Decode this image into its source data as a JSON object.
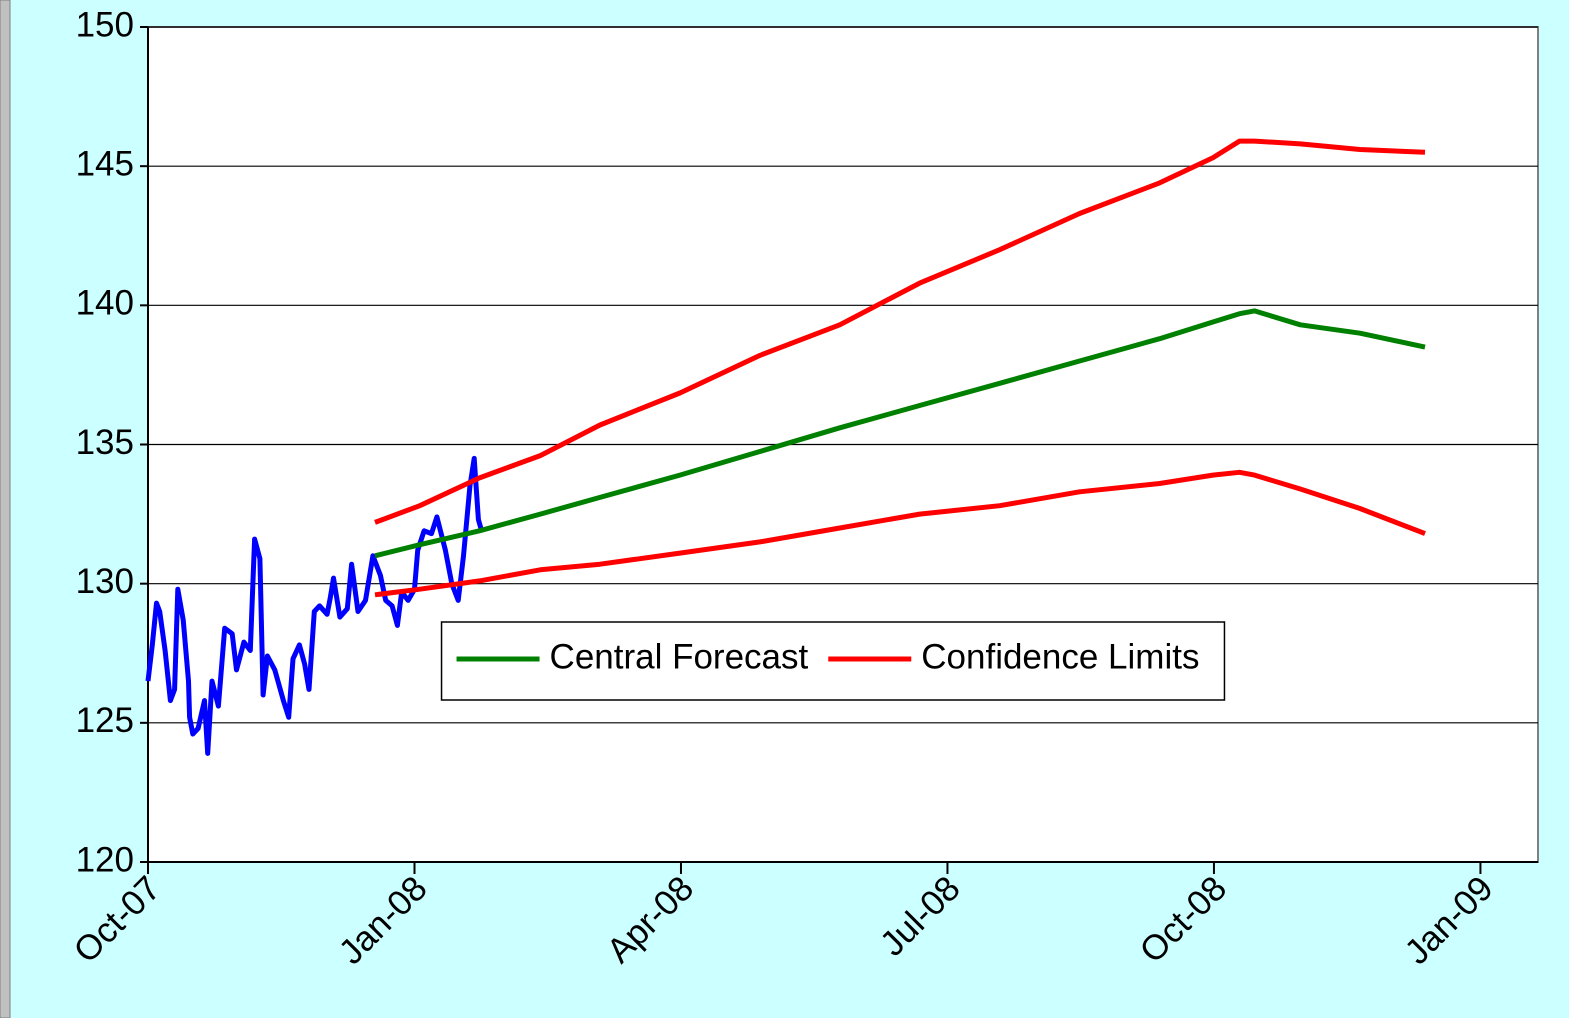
{
  "chart_data": {
    "type": "line",
    "xlim": [
      2007.75,
      2009.054
    ],
    "ylim": [
      120,
      150
    ],
    "xticks": [
      {
        "value": 2007.75,
        "label": "Oct-07"
      },
      {
        "value": 2008.0,
        "label": "Jan-08"
      },
      {
        "value": 2008.25,
        "label": "Apr-08"
      },
      {
        "value": 2008.5,
        "label": "Jul-08"
      },
      {
        "value": 2008.75,
        "label": "Oct-08"
      },
      {
        "value": 2009.0,
        "label": "Jan-09"
      }
    ],
    "yticks": [
      120,
      125,
      130,
      135,
      140,
      145,
      150
    ],
    "grid": true,
    "legend": "center",
    "series": [
      {
        "color": "#0000ff",
        "x": [
          2007.75,
          2007.754,
          2007.758,
          2007.761,
          2007.766,
          2007.771,
          2007.775,
          2007.778,
          2007.783,
          2007.788,
          2007.789,
          2007.792,
          2007.797,
          2007.803,
          2007.806,
          2007.81,
          2007.816,
          2007.822,
          2007.829,
          2007.833,
          2007.84,
          2007.846,
          2007.85,
          2007.855,
          2007.858,
          2007.862,
          2007.869,
          2007.877,
          2007.882,
          2007.886,
          2007.892,
          2007.897,
          2007.901,
          2007.906,
          2007.911,
          2007.918,
          2007.921,
          2007.924,
          2007.93,
          2007.937,
          2007.941,
          2007.947,
          2007.954,
          2007.961,
          2007.968,
          2007.973,
          2007.979,
          2007.984,
          2007.988,
          2007.994,
          2008.0,
          2008.003,
          2008.009,
          2008.016,
          2008.021,
          2008.029,
          2008.035,
          2008.041,
          2008.046,
          2008.052,
          2008.056,
          2008.06,
          2008.063
        ],
        "values": [
          126.5,
          127.8,
          129.3,
          129.0,
          127.6,
          125.8,
          126.2,
          129.8,
          128.7,
          126.5,
          125.2,
          124.6,
          124.8,
          125.8,
          123.9,
          126.5,
          125.6,
          128.4,
          128.2,
          126.9,
          127.9,
          127.6,
          131.6,
          130.9,
          126.0,
          127.4,
          126.9,
          125.8,
          125.2,
          127.3,
          127.8,
          127.1,
          126.2,
          129.0,
          129.2,
          128.9,
          129.5,
          130.2,
          128.8,
          129.1,
          130.7,
          129.0,
          129.4,
          131.0,
          130.3,
          129.4,
          129.2,
          128.5,
          129.7,
          129.4,
          129.8,
          131.2,
          131.9,
          131.8,
          132.4,
          131.2,
          130.0,
          129.4,
          131.0,
          133.5,
          134.5,
          132.3,
          131.9
        ]
      },
      {
        "name": "Central Forecast",
        "color": "#008000",
        "x": [
          2007.963,
          2008.005,
          2008.061,
          2008.118,
          2008.174,
          2008.249,
          2008.324,
          2008.399,
          2008.474,
          2008.549,
          2008.624,
          2008.699,
          2008.749,
          2008.774,
          2008.788,
          2008.831,
          2008.887,
          2008.948
        ],
        "values": [
          131.0,
          131.4,
          131.9,
          132.5,
          133.1,
          133.9,
          134.75,
          135.6,
          136.4,
          137.2,
          138.0,
          138.8,
          139.4,
          139.7,
          139.8,
          139.3,
          139.0,
          138.5
        ]
      },
      {
        "name": "Confidence Limits",
        "color": "#ff0000",
        "x": [
          2007.963,
          2008.005,
          2008.061,
          2008.118,
          2008.174,
          2008.249,
          2008.324,
          2008.399,
          2008.474,
          2008.549,
          2008.624,
          2008.699,
          2008.749,
          2008.774,
          2008.788,
          2008.831,
          2008.887,
          2008.948
        ],
        "values": [
          132.2,
          132.8,
          133.8,
          134.6,
          135.7,
          136.85,
          138.2,
          139.3,
          140.8,
          142.0,
          143.3,
          144.4,
          145.3,
          145.9,
          145.9,
          145.8,
          145.6,
          145.5
        ]
      },
      {
        "color": "#ff0000",
        "x": [
          2007.963,
          2008.005,
          2008.061,
          2008.118,
          2008.174,
          2008.249,
          2008.324,
          2008.399,
          2008.474,
          2008.549,
          2008.624,
          2008.699,
          2008.749,
          2008.774,
          2008.788,
          2008.831,
          2008.887,
          2008.948
        ],
        "values": [
          129.6,
          129.8,
          130.1,
          130.5,
          130.7,
          131.1,
          131.5,
          132.0,
          132.5,
          132.8,
          133.3,
          133.6,
          133.9,
          134.0,
          133.9,
          133.4,
          132.7,
          131.8
        ]
      }
    ]
  }
}
